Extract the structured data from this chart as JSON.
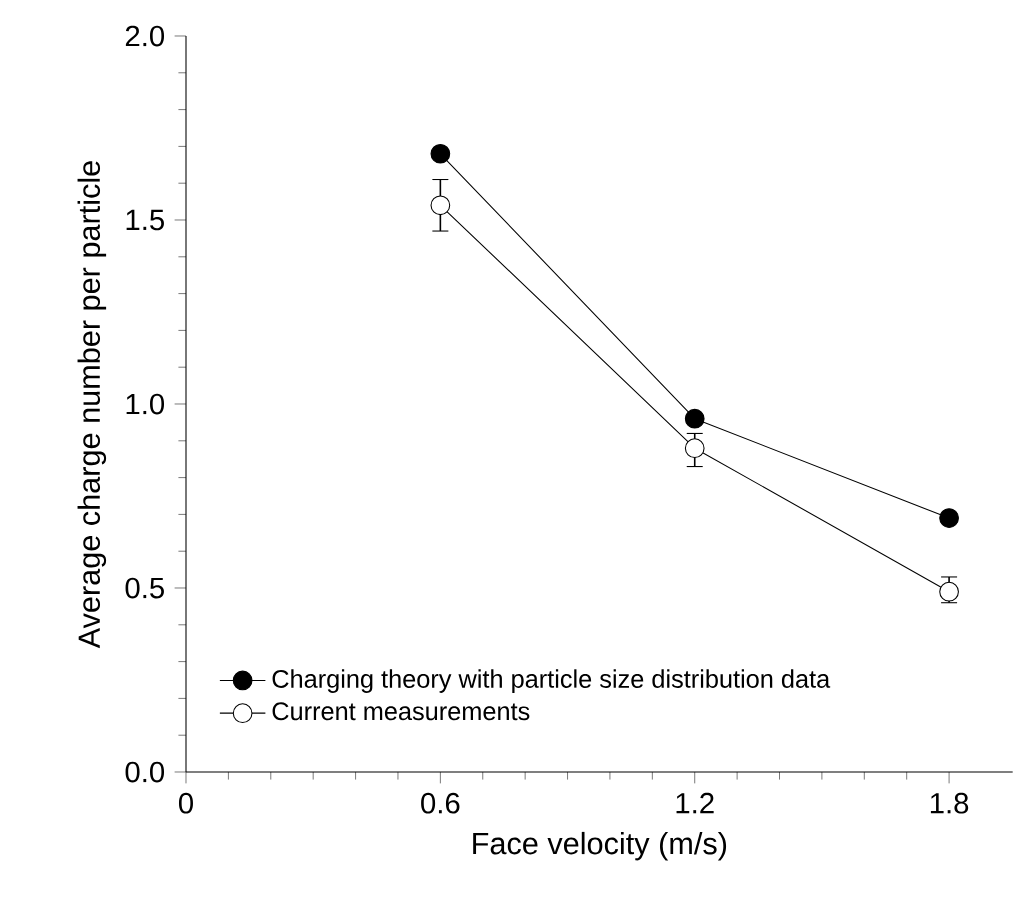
{
  "chart_data": {
    "type": "line",
    "xlabel": "Face velocity (m/s)",
    "ylabel": "Average charge number per particle",
    "x": [
      0.6,
      1.2,
      1.8
    ],
    "series": [
      {
        "name": "Charging theory with particle size distribution data",
        "color": "#000000",
        "values": [
          1.68,
          0.96,
          0.69
        ]
      },
      {
        "name": "Current measurements",
        "color": "#000000",
        "values": [
          1.54,
          0.88,
          0.49
        ],
        "errors": [
          [
            1.47,
            1.61
          ],
          [
            0.83,
            0.92
          ],
          [
            0.46,
            0.53
          ]
        ]
      }
    ],
    "xlim": [
      0,
      1.95
    ],
    "xticks": [
      0,
      0.6,
      1.2,
      1.8
    ],
    "ylim": [
      0,
      2.0
    ],
    "yticks": [
      {
        "value": 0,
        "label": "0.0"
      },
      {
        "value": 0.5,
        "label": "0.5"
      },
      {
        "value": 1.0,
        "label": "1.0"
      },
      {
        "value": 1.5,
        "label": "1.5"
      },
      {
        "value": 2.0,
        "label": "2.0"
      }
    ],
    "grid": false,
    "legend": "bottom left",
    "marker": "circle",
    "line_style": "solid"
  }
}
